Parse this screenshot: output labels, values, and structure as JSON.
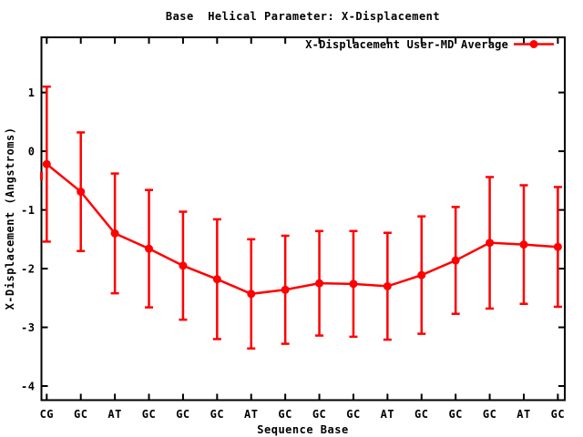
{
  "title": "Base  Helical Parameter: X-Displacement",
  "legend": {
    "label": "X-Displacement User-MD Average"
  },
  "x_axis": {
    "label": "Sequence Base"
  },
  "y_axis": {
    "label": "X-Displacement (Angstroms)"
  },
  "colors": {
    "series": "#ff0000",
    "axis": "#000000",
    "background": "#ffffff"
  },
  "chart_data": {
    "type": "line",
    "title": "Base  Helical Parameter: X-Displacement",
    "xlabel": "Sequence Base",
    "ylabel": "X-Displacement (Angstroms)",
    "categories": [
      "CG",
      "GC",
      "AT",
      "GC",
      "GC",
      "GC",
      "AT",
      "GC",
      "GC",
      "GC",
      "AT",
      "GC",
      "GC",
      "GC",
      "AT",
      "GC"
    ],
    "series": [
      {
        "name": "X-Displacement User-MD Average",
        "color": "#ff0000",
        "marker": "filled-circle",
        "values": [
          -0.22,
          -0.69,
          -1.4,
          -1.66,
          -1.95,
          -2.18,
          -2.43,
          -2.36,
          -2.25,
          -2.26,
          -2.3,
          -2.11,
          -1.86,
          -1.56,
          -1.59,
          -1.63
        ],
        "errors": [
          1.32,
          1.01,
          1.02,
          1.0,
          0.92,
          1.02,
          0.93,
          0.92,
          0.89,
          0.9,
          0.91,
          1.0,
          0.91,
          1.12,
          1.01,
          1.02
        ]
      }
    ],
    "ylim": [
      -4.24,
      1.94
    ],
    "yticks": [
      1,
      0,
      -1,
      -2,
      -3,
      -4
    ],
    "grid": false,
    "error_bars": true,
    "legend_position": "top-right-inside",
    "border": "box-with-mirrored-ticks"
  }
}
